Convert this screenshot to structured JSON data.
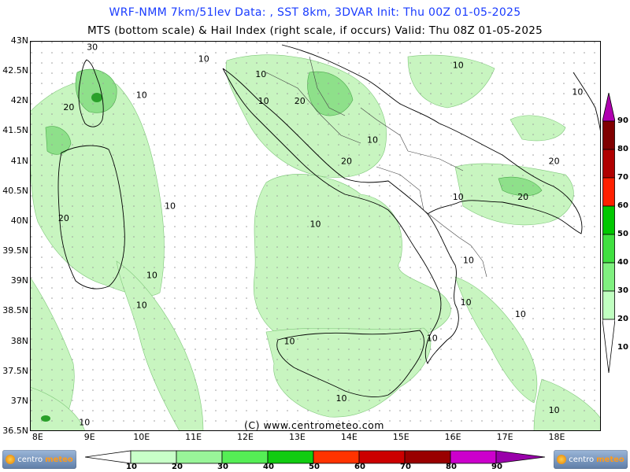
{
  "header": {
    "title_line1": "WRF-NMM 7km/51lev   Data: , SST 8km, 3DVAR    Init: Thu 00Z 01-05-2025",
    "title_line2": "MTS (bottom scale) & Hail Index (right scale, if occurs) Valid: Thu 08Z 01-05-2025"
  },
  "axes": {
    "lat_labels": [
      "43N",
      "42.5N",
      "42N",
      "41.5N",
      "41N",
      "40.5N",
      "40N",
      "39.5N",
      "39N",
      "38.5N",
      "38N",
      "37.5N",
      "37N",
      "36.5N"
    ],
    "lon_labels": [
      "8E",
      "9E",
      "10E",
      "11E",
      "12E",
      "13E",
      "14E",
      "15E",
      "16E",
      "17E",
      "18E"
    ]
  },
  "contour_labels": [
    {
      "text": "10",
      "lon": 10.0,
      "lat": 42.05
    },
    {
      "text": "20",
      "lon": 8.6,
      "lat": 41.85
    },
    {
      "text": "30",
      "lon": 9.05,
      "lat": 42.85
    },
    {
      "text": "10",
      "lon": 11.2,
      "lat": 42.65
    },
    {
      "text": "10",
      "lon": 12.3,
      "lat": 42.4
    },
    {
      "text": "10",
      "lon": 12.35,
      "lat": 41.95
    },
    {
      "text": "20",
      "lon": 13.05,
      "lat": 41.95
    },
    {
      "text": "10",
      "lon": 14.45,
      "lat": 41.3
    },
    {
      "text": "20",
      "lon": 13.95,
      "lat": 40.95
    },
    {
      "text": "10",
      "lon": 16.1,
      "lat": 42.55
    },
    {
      "text": "10",
      "lon": 18.4,
      "lat": 42.1
    },
    {
      "text": "20",
      "lon": 17.95,
      "lat": 40.95
    },
    {
      "text": "20",
      "lon": 17.35,
      "lat": 40.35
    },
    {
      "text": "10",
      "lon": 16.1,
      "lat": 40.35
    },
    {
      "text": "10",
      "lon": 10.55,
      "lat": 40.2
    },
    {
      "text": "20",
      "lon": 8.5,
      "lat": 40.0
    },
    {
      "text": "10",
      "lon": 13.35,
      "lat": 39.9
    },
    {
      "text": "10",
      "lon": 16.3,
      "lat": 39.3
    },
    {
      "text": "10",
      "lon": 10.2,
      "lat": 39.05
    },
    {
      "text": "10",
      "lon": 10.0,
      "lat": 38.55
    },
    {
      "text": "10",
      "lon": 16.25,
      "lat": 38.6
    },
    {
      "text": "10",
      "lon": 17.3,
      "lat": 38.4
    },
    {
      "text": "10",
      "lon": 12.85,
      "lat": 37.95
    },
    {
      "text": "10",
      "lon": 15.6,
      "lat": 38.0
    },
    {
      "text": "10",
      "lon": 13.85,
      "lat": 37.0
    },
    {
      "text": "10",
      "lon": 17.95,
      "lat": 36.8
    },
    {
      "text": "10",
      "lon": 8.9,
      "lat": 36.6
    }
  ],
  "right_scale": {
    "labels": [
      "90",
      "80",
      "70",
      "60",
      "50",
      "40",
      "30",
      "20",
      "10"
    ],
    "colors": [
      "#b000b0",
      "#800000",
      "#b00000",
      "#ff2000",
      "#00c800",
      "#40e040",
      "#80f080",
      "#c0ffc0",
      "#ffffff"
    ]
  },
  "bottom_scale": {
    "labels": [
      "10",
      "20",
      "30",
      "40",
      "50",
      "60",
      "70",
      "80",
      "90"
    ],
    "colors": [
      "#c8ffc8",
      "#99f599",
      "#55ee55",
      "#11cc11",
      "#ff3300",
      "#cc0000",
      "#990000",
      "#cc00cc",
      "#9900aa"
    ]
  },
  "footer": {
    "copyright": "(C) www.centrometeo.com",
    "logo_left_prefix": "centro",
    "logo_left_suffix": "meteo",
    "logo_right_prefix": "centro",
    "logo_right_suffix": "meteo"
  },
  "colors": {
    "title_blue": "#1a3cff",
    "light_green": "#c8f5c0",
    "mid_green": "#8ee08a",
    "dark_green": "#2aa02a"
  }
}
